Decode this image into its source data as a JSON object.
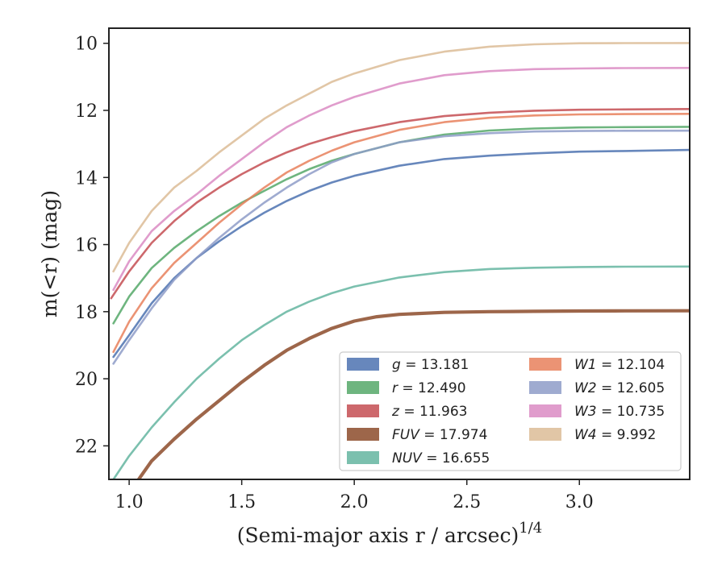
{
  "chart_data": {
    "type": "line",
    "title": "",
    "xlabel": "(Semi-major axis r / arcsec)",
    "xlabel_superscript": "1/4",
    "ylabel": "m(<r) (mag)",
    "xlim": [
      0.91,
      3.49
    ],
    "ylim": [
      23.0,
      9.55
    ],
    "y_inverted": true,
    "grid": false,
    "legend_position": "lower-right",
    "xticks": [
      "1.0",
      "1.5",
      "2.0",
      "2.5",
      "3.0"
    ],
    "yticks": [
      "10",
      "12",
      "14",
      "16",
      "18",
      "20",
      "22"
    ],
    "series": [
      {
        "name": "g = 13.181",
        "name_prefix": "g",
        "name_value": "13.181",
        "color": "#4c72b0",
        "x": [
          0.93,
          1.0,
          1.1,
          1.2,
          1.3,
          1.4,
          1.5,
          1.6,
          1.7,
          1.8,
          1.9,
          2.0,
          2.2,
          2.4,
          2.6,
          2.8,
          3.0,
          3.2,
          3.49
        ],
        "y": [
          19.35,
          18.7,
          17.75,
          17.0,
          16.4,
          15.9,
          15.45,
          15.05,
          14.7,
          14.4,
          14.15,
          13.95,
          13.65,
          13.45,
          13.35,
          13.28,
          13.23,
          13.21,
          13.18
        ]
      },
      {
        "name": "r = 12.490",
        "name_prefix": "r",
        "name_value": "12.490",
        "color": "#55a868",
        "x": [
          0.93,
          1.0,
          1.1,
          1.2,
          1.3,
          1.4,
          1.5,
          1.6,
          1.7,
          1.8,
          1.9,
          2.0,
          2.2,
          2.4,
          2.6,
          2.8,
          3.0,
          3.2,
          3.49
        ],
        "y": [
          18.35,
          17.55,
          16.7,
          16.1,
          15.6,
          15.15,
          14.75,
          14.4,
          14.05,
          13.75,
          13.5,
          13.3,
          12.95,
          12.72,
          12.6,
          12.54,
          12.51,
          12.5,
          12.49
        ]
      },
      {
        "name": "z = 11.963",
        "name_prefix": "z",
        "name_value": "11.963",
        "color": "#c44e52",
        "x": [
          0.92,
          1.0,
          1.1,
          1.2,
          1.3,
          1.4,
          1.5,
          1.6,
          1.7,
          1.8,
          1.9,
          2.0,
          2.2,
          2.4,
          2.6,
          2.8,
          3.0,
          3.2,
          3.49
        ],
        "y": [
          17.6,
          16.8,
          15.95,
          15.3,
          14.75,
          14.3,
          13.9,
          13.55,
          13.25,
          13.0,
          12.8,
          12.62,
          12.35,
          12.17,
          12.07,
          12.01,
          11.98,
          11.97,
          11.96
        ]
      },
      {
        "name": "FUV = 17.974",
        "name_prefix": "FUV",
        "name_value": "17.974",
        "color": "#8c4b2a",
        "x": [
          0.93,
          1.0,
          1.1,
          1.2,
          1.3,
          1.4,
          1.5,
          1.6,
          1.7,
          1.8,
          1.9,
          2.0,
          2.1,
          2.2,
          2.4,
          2.6,
          2.8,
          3.0,
          3.2,
          3.49
        ],
        "y": [
          24.0,
          23.4,
          22.45,
          21.8,
          21.2,
          20.65,
          20.1,
          19.6,
          19.15,
          18.8,
          18.5,
          18.28,
          18.15,
          18.08,
          18.02,
          18.0,
          17.99,
          17.98,
          17.975,
          17.974
        ]
      },
      {
        "name": "NUV = 16.655",
        "name_prefix": "NUV",
        "name_value": "16.655",
        "color": "#64b5a0",
        "x": [
          0.93,
          1.0,
          1.1,
          1.2,
          1.3,
          1.4,
          1.5,
          1.6,
          1.7,
          1.8,
          1.9,
          2.0,
          2.2,
          2.4,
          2.6,
          2.8,
          3.0,
          3.2,
          3.49
        ],
        "y": [
          23.0,
          22.3,
          21.45,
          20.7,
          20.0,
          19.4,
          18.85,
          18.4,
          18.0,
          17.7,
          17.45,
          17.25,
          16.98,
          16.82,
          16.73,
          16.69,
          16.67,
          16.66,
          16.655
        ]
      },
      {
        "name": "W1 = 12.104",
        "name_prefix": "W1",
        "name_value": "12.104",
        "color": "#e8805c",
        "x": [
          0.93,
          1.0,
          1.1,
          1.2,
          1.3,
          1.4,
          1.5,
          1.6,
          1.7,
          1.8,
          1.9,
          2.0,
          2.2,
          2.4,
          2.6,
          2.8,
          3.0,
          3.2,
          3.49
        ],
        "y": [
          19.2,
          18.3,
          17.3,
          16.55,
          15.95,
          15.35,
          14.8,
          14.3,
          13.85,
          13.5,
          13.2,
          12.95,
          12.58,
          12.35,
          12.22,
          12.15,
          12.12,
          12.11,
          12.104
        ]
      },
      {
        "name": "W2 = 12.605",
        "name_prefix": "W2",
        "name_value": "12.605",
        "color": "#8e9cc8",
        "x": [
          0.93,
          1.0,
          1.1,
          1.2,
          1.3,
          1.4,
          1.5,
          1.6,
          1.7,
          1.8,
          1.9,
          2.0,
          2.2,
          2.4,
          2.6,
          2.8,
          3.0,
          3.2,
          3.49
        ],
        "y": [
          19.55,
          18.85,
          17.9,
          17.05,
          16.4,
          15.8,
          15.25,
          14.75,
          14.3,
          13.9,
          13.55,
          13.3,
          12.95,
          12.77,
          12.68,
          12.63,
          12.615,
          12.608,
          12.605
        ]
      },
      {
        "name": "W3 = 10.735",
        "name_prefix": "W3",
        "name_value": "10.735",
        "color": "#da8bc3",
        "x": [
          0.93,
          1.0,
          1.1,
          1.2,
          1.3,
          1.4,
          1.5,
          1.6,
          1.7,
          1.8,
          1.9,
          2.0,
          2.2,
          2.4,
          2.6,
          2.8,
          3.0,
          3.2,
          3.49
        ],
        "y": [
          17.35,
          16.5,
          15.6,
          15.0,
          14.5,
          13.95,
          13.45,
          12.95,
          12.5,
          12.15,
          11.85,
          11.6,
          11.2,
          10.95,
          10.83,
          10.77,
          10.75,
          10.74,
          10.735
        ]
      },
      {
        "name": "W4 = 9.992",
        "name_prefix": "W4",
        "name_value": "9.992",
        "color": "#dcbc97",
        "x": [
          0.93,
          1.0,
          1.1,
          1.2,
          1.3,
          1.4,
          1.5,
          1.6,
          1.7,
          1.8,
          1.9,
          2.0,
          2.2,
          2.4,
          2.6,
          2.8,
          3.0,
          3.2,
          3.49
        ],
        "y": [
          16.8,
          15.95,
          15.0,
          14.3,
          13.8,
          13.25,
          12.75,
          12.25,
          11.85,
          11.5,
          11.15,
          10.9,
          10.5,
          10.25,
          10.1,
          10.03,
          10.0,
          9.995,
          9.992
        ]
      }
    ]
  }
}
